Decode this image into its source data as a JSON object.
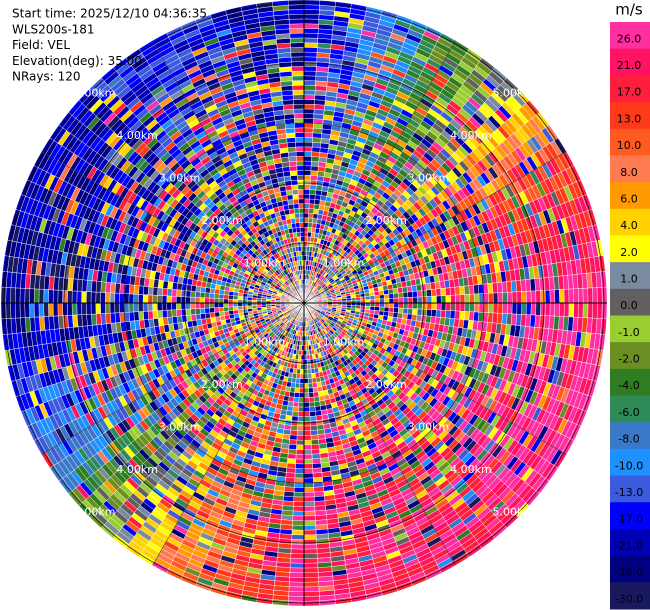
{
  "header": {
    "lines": [
      "Start time: 2025/12/10 04:36:35",
      "WLS200s-181",
      "Field: VEL",
      "Elevation(deg): 35.00",
      "NRays: 120"
    ]
  },
  "colorbar": {
    "unit": "m/s",
    "labels": [
      "26.0",
      "21.0",
      "17.0",
      "13.0",
      "10.0",
      "8.0",
      "6.0",
      "4.0",
      "2.0",
      "1.0",
      "0.0",
      "-1.0",
      "-2.0",
      "-4.0",
      "-6.0",
      "-8.0",
      "-10.0",
      "-13.0",
      "-17.0",
      "-21.0",
      "-26.0",
      "-30.0"
    ],
    "colors": [
      "#ff2fa0",
      "#ff1464",
      "#ff1e3c",
      "#ff3a1a",
      "#ff5a20",
      "#ff7a50",
      "#ff9a00",
      "#ffd200",
      "#ffff00",
      "#7a8aa0",
      "#606060",
      "#9acd32",
      "#6b8e23",
      "#2e7d22",
      "#2e8b57",
      "#3a78c8",
      "#1e90ff",
      "#3c5adc",
      "#0000ff",
      "#0000b4",
      "#000080",
      "#191960"
    ]
  },
  "range_rings": {
    "labels": [
      "1.00km",
      "2.00km",
      "3.00km",
      "4.00km",
      "5.00km"
    ]
  }
}
